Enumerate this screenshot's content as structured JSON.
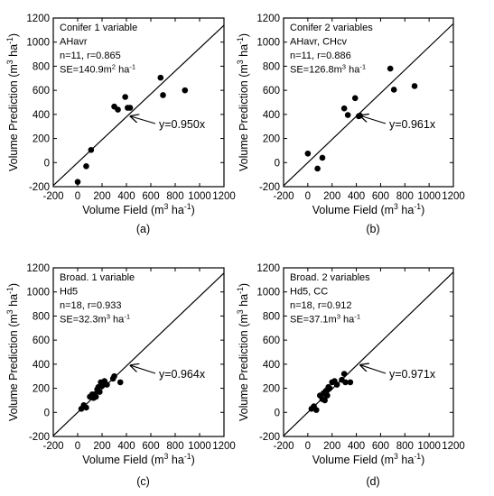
{
  "chart_data": [
    {
      "panel": "(a)",
      "type": "scatter",
      "xlabel": "Volume Field",
      "ylabel": "Volume Prediction",
      "unit": "(m3 ha-1)",
      "xlim": [
        -200,
        1200
      ],
      "ylim": [
        -200,
        1200
      ],
      "xticks": [
        "-200",
        "0",
        "200",
        "400",
        "600",
        "800",
        "1000",
        "1200"
      ],
      "yticks": [
        "-200",
        "0",
        "200",
        "400",
        "600",
        "800",
        "1000",
        "1200"
      ],
      "annotation": [
        "Conifer 1 variable",
        "AHavr",
        "n=11,  r=0.865",
        "SE=140.9m2 ha-1"
      ],
      "fit_label": "y=0.950x",
      "slope": 0.95,
      "points": [
        [
          0,
          -160
        ],
        [
          70,
          -30
        ],
        [
          110,
          105
        ],
        [
          300,
          465
        ],
        [
          330,
          440
        ],
        [
          390,
          545
        ],
        [
          410,
          455
        ],
        [
          430,
          455
        ],
        [
          680,
          705
        ],
        [
          700,
          560
        ],
        [
          880,
          600
        ]
      ]
    },
    {
      "panel": "(b)",
      "type": "scatter",
      "xlabel": "Volume Field",
      "ylabel": "Volume Prediction",
      "unit": "(m3 ha-1)",
      "xlim": [
        -200,
        1200
      ],
      "ylim": [
        -200,
        1200
      ],
      "xticks": [
        "-200",
        "0",
        "200",
        "400",
        "600",
        "800",
        "1000",
        "1200"
      ],
      "yticks": [
        "-200",
        "0",
        "200",
        "400",
        "600",
        "800",
        "1000",
        "1200"
      ],
      "annotation": [
        "Conifer  2 variables",
        "AHavr,  CHcv",
        "n=11,   r=0.886",
        "SE=126.8m3 ha-1"
      ],
      "fit_label": "y=0.961x",
      "slope": 0.961,
      "points": [
        [
          0,
          75
        ],
        [
          80,
          -50
        ],
        [
          120,
          40
        ],
        [
          300,
          450
        ],
        [
          330,
          395
        ],
        [
          390,
          535
        ],
        [
          420,
          385
        ],
        [
          430,
          390
        ],
        [
          680,
          780
        ],
        [
          710,
          605
        ],
        [
          880,
          635
        ]
      ]
    },
    {
      "panel": "(c)",
      "type": "scatter",
      "xlabel": "Volume Field",
      "ylabel": "Volume Prediction",
      "unit": "(m3 ha-1)",
      "xlim": [
        -200,
        1200
      ],
      "ylim": [
        -200,
        1200
      ],
      "xticks": [
        "-200",
        "0",
        "200",
        "400",
        "600",
        "800",
        "1000",
        "1200"
      ],
      "yticks": [
        "-200",
        "0",
        "200",
        "400",
        "600",
        "800",
        "1000",
        "1200"
      ],
      "annotation": [
        "Broad. 1 variable",
        "Hd5",
        "n=18,   r=0.933",
        "SE=32.3m3 ha-1"
      ],
      "fit_label": "y=0.964x",
      "slope": 0.964,
      "points": [
        [
          30,
          30
        ],
        [
          50,
          60
        ],
        [
          70,
          40
        ],
        [
          100,
          130
        ],
        [
          120,
          150
        ],
        [
          130,
          120
        ],
        [
          140,
          150
        ],
        [
          150,
          130
        ],
        [
          160,
          190
        ],
        [
          170,
          210
        ],
        [
          180,
          170
        ],
        [
          190,
          250
        ],
        [
          200,
          220
        ],
        [
          220,
          260
        ],
        [
          240,
          230
        ],
        [
          290,
          280
        ],
        [
          300,
          300
        ],
        [
          350,
          250
        ]
      ]
    },
    {
      "panel": "(d)",
      "type": "scatter",
      "xlabel": "Volume Field",
      "ylabel": "Volume Prediction",
      "unit": "(m3 ha-1)",
      "xlim": [
        -200,
        1200
      ],
      "ylim": [
        -200,
        1200
      ],
      "xticks": [
        "-200",
        "0",
        "200",
        "400",
        "600",
        "800",
        "1000",
        "1200"
      ],
      "yticks": [
        "-200",
        "0",
        "200",
        "400",
        "600",
        "800",
        "1000",
        "1200"
      ],
      "annotation": [
        "Broad. 2 variables",
        "Hd5, CC",
        "n=18,   r=0.912",
        "SE=37.1m3 ha-1"
      ],
      "fit_label": "y=0.971x",
      "slope": 0.971,
      "points": [
        [
          30,
          30
        ],
        [
          50,
          50
        ],
        [
          70,
          20
        ],
        [
          100,
          140
        ],
        [
          120,
          110
        ],
        [
          130,
          160
        ],
        [
          140,
          100
        ],
        [
          150,
          180
        ],
        [
          160,
          140
        ],
        [
          170,
          210
        ],
        [
          180,
          200
        ],
        [
          200,
          250
        ],
        [
          220,
          260
        ],
        [
          240,
          230
        ],
        [
          280,
          270
        ],
        [
          300,
          320
        ],
        [
          310,
          250
        ],
        [
          350,
          250
        ]
      ]
    }
  ]
}
